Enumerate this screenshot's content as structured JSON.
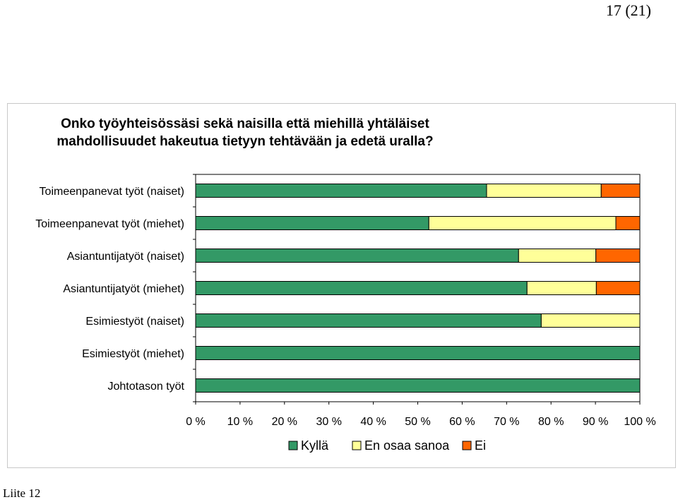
{
  "page": {
    "page_number": "17 (21)",
    "appendix": "Liite 12"
  },
  "chart_data": {
    "type": "bar",
    "orientation": "horizontal",
    "stacked": "percent",
    "title_lines": [
      "Onko työyhteisössäsi sekä naisilla että miehillä yhtäläiset",
      "mahdollisuudet hakeutua tietyyn tehtävään ja edetä uralla?"
    ],
    "categories": [
      "Toimeenpanevat työt (naiset)",
      "Toimeenpanevat työt (miehet)",
      "Asiantuntijatyöt (naiset)",
      "Asiantuntijatyöt (miehet)",
      "Esimiestyöt (naiset)",
      "Esimiestyöt (miehet)",
      "Johtotason työt"
    ],
    "series": [
      {
        "name": "Kyllä",
        "color": "#339966",
        "values": [
          65.5,
          52.5,
          72.7,
          74.6,
          77.8,
          100,
          100
        ]
      },
      {
        "name": "En osaa sanoa",
        "color": "#ffff99",
        "values": [
          25.8,
          42.1,
          17.4,
          15.6,
          22.2,
          0,
          0
        ]
      },
      {
        "name": "Ei",
        "color": "#ff6600",
        "values": [
          8.7,
          5.4,
          9.9,
          9.8,
          0,
          0,
          0
        ]
      }
    ],
    "x_ticks": [
      "0 %",
      "10 %",
      "20 %",
      "30 %",
      "40 %",
      "50 %",
      "60 %",
      "70 %",
      "80 %",
      "90 %",
      "100 %"
    ],
    "xlim": [
      0,
      100
    ],
    "grid": false,
    "legend_position": "bottom"
  }
}
